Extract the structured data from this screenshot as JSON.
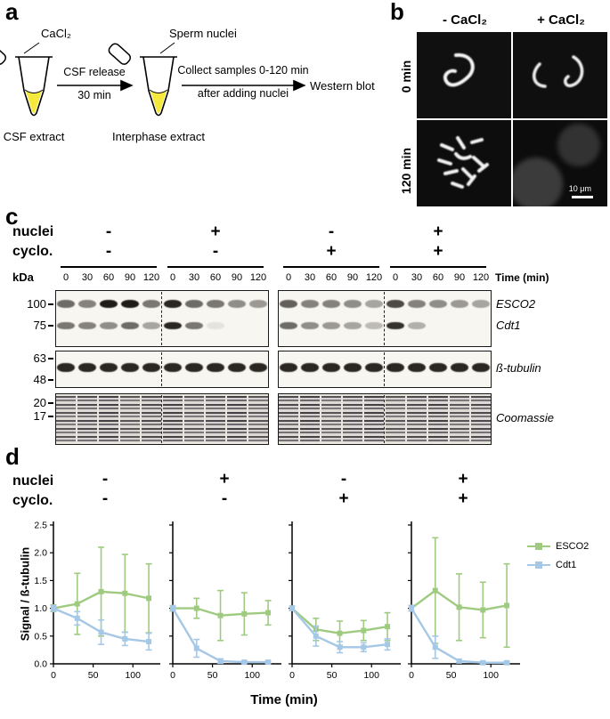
{
  "panel_a": {
    "label": "a",
    "cacl2": "CaCl₂",
    "csf_release": "CSF release",
    "thirty_min": "30 min",
    "csf_extract": "CSF extract",
    "sperm_nuclei": "Sperm nuclei",
    "interphase_extract": "Interphase extract",
    "collect_samples": "Collect samples 0-120 min",
    "after_adding": "after adding nuclei",
    "western_blot": "Western blot"
  },
  "panel_b": {
    "label": "b",
    "col_minus": "- CaCl₂",
    "col_plus": "+ CaCl₂",
    "row_0": "0 min",
    "row_120": "120 min",
    "scale_bar": "10 μm"
  },
  "panel_c": {
    "label": "c",
    "nuclei_label": "nuclei",
    "cyclo_label": "cyclo.",
    "nuclei_signs": [
      "-",
      "+",
      "-",
      "+"
    ],
    "cyclo_signs": [
      "-",
      "-",
      "+",
      "+"
    ],
    "kda_label": "kDa",
    "times": [
      "0",
      "30",
      "60",
      "90",
      "120"
    ],
    "time_label": "Time (min)",
    "markers": {
      "blot1": [
        "100",
        "75"
      ],
      "blot2": [
        "63",
        "48"
      ],
      "blot3": [
        "20",
        "17"
      ]
    },
    "labels": {
      "band1": "ESCO2",
      "band2": "Cdt1",
      "band3": "ß-tubulin",
      "band4": "Coomassie"
    },
    "band_intensities": {
      "esco2": [
        [
          0.6,
          0.5,
          0.95,
          0.95,
          0.55
        ],
        [
          0.9,
          0.6,
          0.55,
          0.45,
          0.4
        ],
        [
          0.65,
          0.5,
          0.5,
          0.45,
          0.35
        ],
        [
          0.75,
          0.5,
          0.45,
          0.4,
          0.35
        ]
      ],
      "cdt1": [
        [
          0.55,
          0.5,
          0.45,
          0.6,
          0.35
        ],
        [
          0.9,
          0.55,
          0.08,
          0,
          0
        ],
        [
          0.6,
          0.45,
          0.4,
          0.35,
          0.25
        ],
        [
          0.85,
          0.3,
          0,
          0,
          0
        ]
      ],
      "tubulin": [
        [
          0.9,
          0.9,
          0.9,
          0.9,
          0.9
        ],
        [
          0.9,
          0.9,
          0.9,
          0.9,
          0.9
        ],
        [
          0.9,
          0.9,
          0.9,
          0.9,
          0.9
        ],
        [
          0.9,
          0.9,
          0.9,
          0.9,
          0.9
        ]
      ]
    }
  },
  "panel_d": {
    "label": "d",
    "nuclei_label": "nuclei",
    "cyclo_label": "cyclo.",
    "nuclei_signs": [
      "-",
      "+",
      "-",
      "+"
    ],
    "cyclo_signs": [
      "-",
      "-",
      "+",
      "+"
    ]
  },
  "chart_data": {
    "type": "line",
    "x": [
      0,
      30,
      60,
      90,
      120
    ],
    "xticks": [
      0,
      50,
      100
    ],
    "xlabel": "Time (min)",
    "ylabel": "Signal / ß-tubulin",
    "ylim": [
      0,
      2.5
    ],
    "yticks": [
      "0.0",
      "0.5",
      "1.0",
      "1.5",
      "2.0",
      "2.5"
    ],
    "legend": [
      {
        "name": "ESCO2",
        "color": "#9fcb80"
      },
      {
        "name": "Cdt1",
        "color": "#a5c8e6"
      }
    ],
    "subplots": [
      {
        "nuclei": "-",
        "cyclo": "-",
        "series": [
          {
            "name": "ESCO2",
            "values": [
              1.0,
              1.08,
              1.3,
              1.27,
              1.18
            ],
            "errors": [
              0.06,
              0.55,
              0.8,
              0.7,
              0.62
            ]
          },
          {
            "name": "Cdt1",
            "values": [
              1.0,
              0.82,
              0.57,
              0.45,
              0.4
            ],
            "errors": [
              0.05,
              0.12,
              0.22,
              0.12,
              0.15
            ]
          }
        ]
      },
      {
        "nuclei": "+",
        "cyclo": "-",
        "series": [
          {
            "name": "ESCO2",
            "values": [
              1.0,
              1.0,
              0.87,
              0.9,
              0.92
            ],
            "errors": [
              0.04,
              0.18,
              0.45,
              0.38,
              0.22
            ]
          },
          {
            "name": "Cdt1",
            "values": [
              1.0,
              0.28,
              0.05,
              0.03,
              0.03
            ],
            "errors": [
              0.05,
              0.16,
              0.04,
              0.02,
              0.02
            ]
          }
        ]
      },
      {
        "nuclei": "-",
        "cyclo": "+",
        "series": [
          {
            "name": "ESCO2",
            "values": [
              1.0,
              0.62,
              0.55,
              0.6,
              0.67
            ],
            "errors": [
              0.04,
              0.2,
              0.22,
              0.18,
              0.25
            ]
          },
          {
            "name": "Cdt1",
            "values": [
              1.0,
              0.5,
              0.3,
              0.3,
              0.35
            ],
            "errors": [
              0.04,
              0.18,
              0.1,
              0.08,
              0.1
            ]
          }
        ]
      },
      {
        "nuclei": "+",
        "cyclo": "+",
        "series": [
          {
            "name": "ESCO2",
            "values": [
              1.0,
              1.32,
              1.02,
              0.97,
              1.05
            ],
            "errors": [
              0.05,
              0.95,
              0.6,
              0.5,
              0.75
            ]
          },
          {
            "name": "Cdt1",
            "values": [
              1.0,
              0.3,
              0.05,
              0.02,
              0.02
            ],
            "errors": [
              0.05,
              0.2,
              0.03,
              0.02,
              0.02
            ]
          }
        ]
      }
    ]
  }
}
